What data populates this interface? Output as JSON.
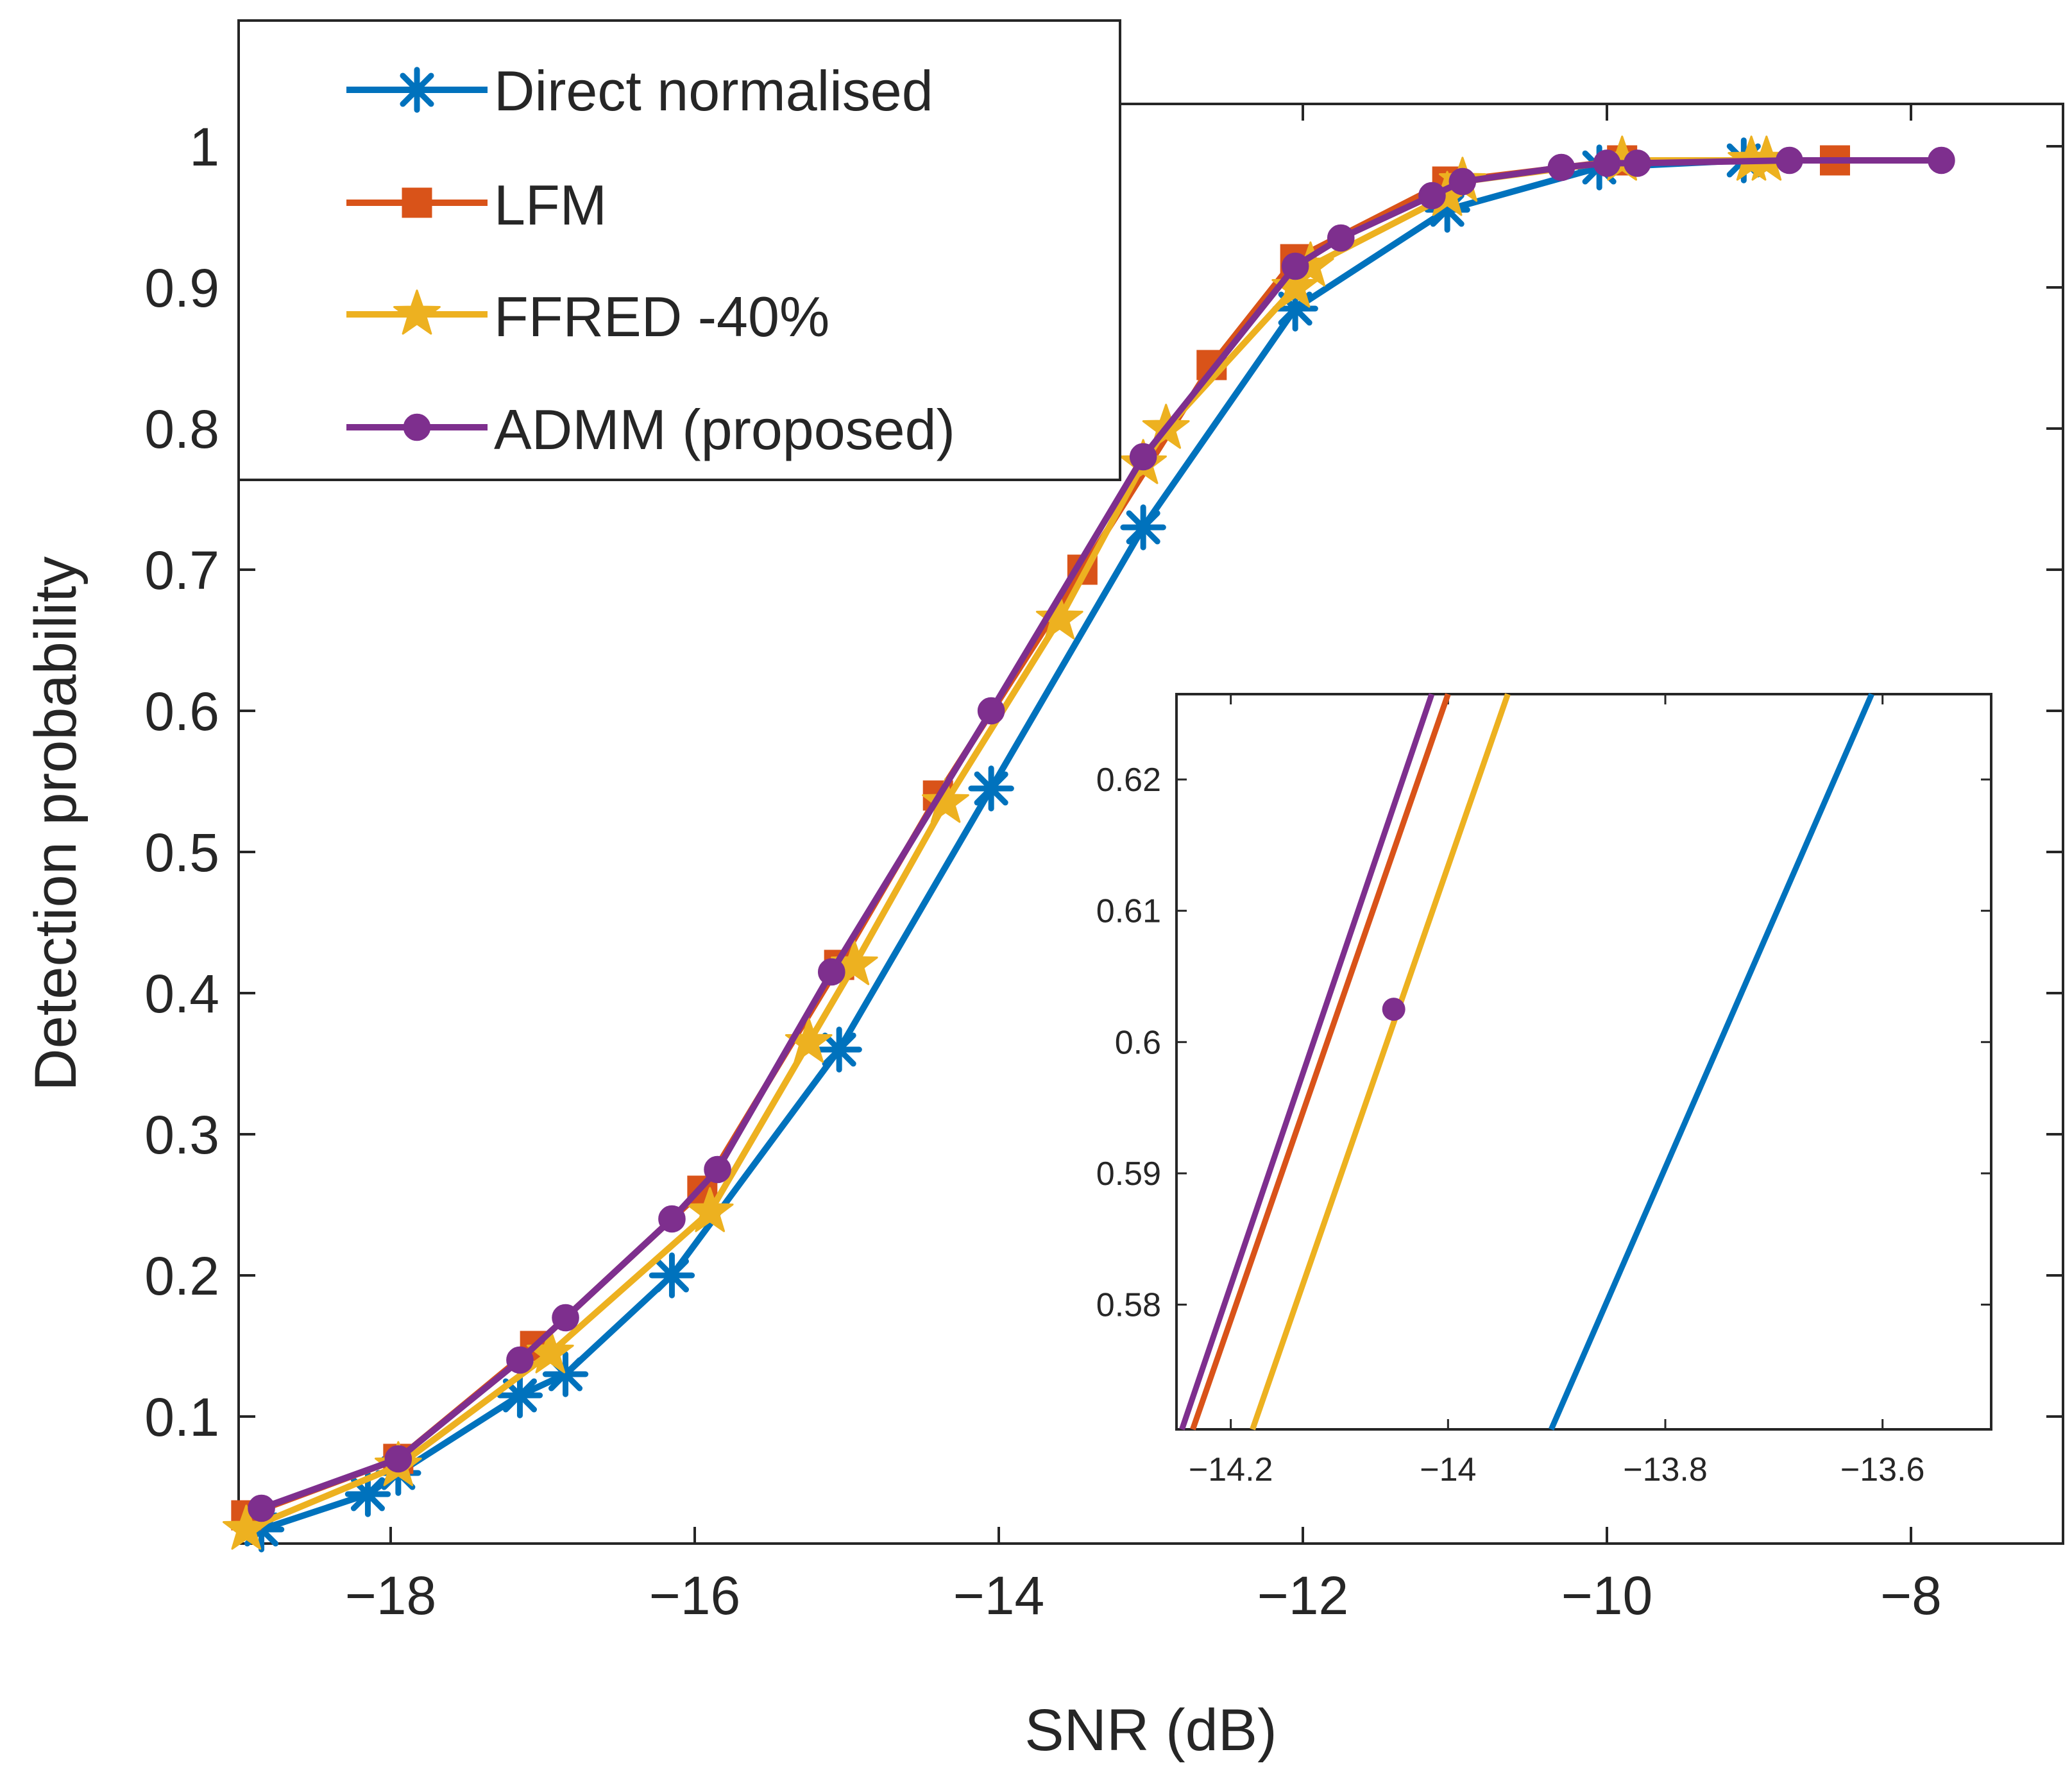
{
  "chart_data": [
    {
      "type": "line",
      "title": "",
      "xlabel": "SNR (dB)",
      "ylabel": "Detection probability",
      "xlim": [
        -19,
        -7
      ],
      "ylim": [
        0.01,
        1.03
      ],
      "xticks": [
        -18,
        -16,
        -14,
        -12,
        -10,
        -8
      ],
      "xtick_labels": [
        "−18",
        "−16",
        "−14",
        "−12",
        "−10",
        "−8"
      ],
      "yticks": [
        0.1,
        0.2,
        0.3,
        0.4,
        0.5,
        0.6,
        0.7,
        0.8,
        0.9,
        1
      ],
      "ytick_labels": [
        "0.1",
        "0.2",
        "0.3",
        "0.4",
        "0.5",
        "0.6",
        "0.7",
        "0.8",
        "0.9",
        "1"
      ],
      "legend_position": "top-left",
      "series": [
        {
          "name": "Direct normalised",
          "color": "#0072BD",
          "marker": "asterisk",
          "x": [
            -18.85,
            -18.15,
            -17.95,
            -17.15,
            -16.85,
            -16.15,
            -15.05,
            -14.05,
            -13.05,
            -12.05,
            -11.05,
            -10.05,
            -9.1
          ],
          "y": [
            0.02,
            0.045,
            0.06,
            0.115,
            0.13,
            0.2,
            0.36,
            0.545,
            0.73,
            0.885,
            0.955,
            0.985,
            0.99
          ]
        },
        {
          "name": "LFM",
          "color": "#D95319",
          "marker": "square",
          "x": [
            -18.95,
            -17.95,
            -17.05,
            -15.95,
            -15.05,
            -14.4,
            -13.45,
            -12.6,
            -12.05,
            -11.05,
            -9.9,
            -8.5
          ],
          "y": [
            0.03,
            0.07,
            0.15,
            0.26,
            0.42,
            0.54,
            0.7,
            0.845,
            0.92,
            0.975,
            0.99,
            0.99
          ]
        },
        {
          "name": "FFRED -40%",
          "color": "#EDB120",
          "marker": "pentagram",
          "x": [
            -18.95,
            -17.95,
            -16.95,
            -15.9,
            -15.25,
            -14.95,
            -14.35,
            -13.6,
            -13.05,
            -12.9,
            -12.05,
            -11.95,
            -11.05,
            -10.95,
            -9.9,
            -9.05,
            -8.95
          ],
          "y": [
            0.02,
            0.065,
            0.145,
            0.245,
            0.365,
            0.42,
            0.535,
            0.665,
            0.775,
            0.8,
            0.9,
            0.915,
            0.965,
            0.975,
            0.99,
            0.99,
            0.99
          ]
        },
        {
          "name": "ADMM (proposed)",
          "color": "#7E2F8E",
          "marker": "circle",
          "x": [
            -18.85,
            -17.95,
            -17.15,
            -16.85,
            -16.15,
            -15.85,
            -15.1,
            -14.05,
            -13.05,
            -12.05,
            -11.75,
            -11.15,
            -10.95,
            -10.3,
            -10.0,
            -9.8,
            -8.8,
            -7.8
          ],
          "y": [
            0.035,
            0.07,
            0.14,
            0.17,
            0.24,
            0.275,
            0.415,
            0.6,
            0.78,
            0.915,
            0.935,
            0.965,
            0.975,
            0.985,
            0.988,
            0.988,
            0.99,
            0.99
          ]
        }
      ]
    },
    {
      "type": "line",
      "title": "",
      "xlabel": "",
      "ylabel": "",
      "xlim": [
        -14.25,
        -13.5
      ],
      "ylim": [
        0.5705,
        0.6265
      ],
      "xticks": [
        -14.2,
        -14,
        -13.8,
        -13.6
      ],
      "xtick_labels": [
        "−14.2",
        "−14",
        "−13.8",
        "−13.6"
      ],
      "yticks": [
        0.58,
        0.59,
        0.6,
        0.61,
        0.62
      ],
      "ytick_labels": [
        "0.58",
        "0.59",
        "0.6",
        "0.61",
        "0.62"
      ],
      "series": [
        {
          "name": "Direct normalised",
          "color": "#0072BD",
          "x": [
            -13.905,
            -13.61
          ],
          "y": [
            0.5705,
            0.6265
          ]
        },
        {
          "name": "LFM",
          "color": "#D95319",
          "x": [
            -14.235,
            -14.0
          ],
          "y": [
            0.5705,
            0.6265
          ]
        },
        {
          "name": "FFRED -40%",
          "color": "#EDB120",
          "x": [
            -14.18,
            -13.945
          ],
          "y": [
            0.5705,
            0.6265
          ]
        },
        {
          "name": "ADMM (proposed)",
          "color": "#7E2F8E",
          "x": [
            -14.245,
            -14.015
          ],
          "y": [
            0.5705,
            0.6265
          ],
          "marker_point": {
            "x": -14.05,
            "y": 0.6025
          }
        }
      ]
    }
  ]
}
